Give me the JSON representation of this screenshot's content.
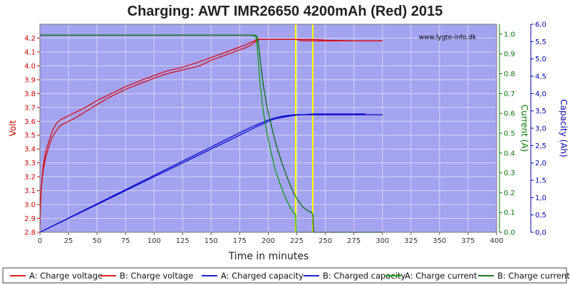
{
  "chart_data": {
    "type": "line",
    "title": "Charging: AWT IMR26650 4200mAh (Red) 2015",
    "watermark": "www.lygte-info.dk",
    "xlabel": "Time in minutes",
    "ylabel_left": "Volt",
    "ylabel_right1": "Current (A)",
    "ylabel_right2": "Capacity (Ah)",
    "xlim": [
      0,
      400
    ],
    "ylim_left": [
      2.8,
      4.3
    ],
    "ylim_right1": [
      0.0,
      1.05
    ],
    "ylim_right2": [
      0.0,
      6.0
    ],
    "grid": true,
    "legend_position": "bottom",
    "x_ticks": [
      "0",
      "25",
      "50",
      "75",
      "100",
      "125",
      "150",
      "175",
      "200",
      "225",
      "250",
      "275",
      "300",
      "325",
      "350",
      "375",
      "400"
    ],
    "y_ticks_left": [
      "2.8",
      "2.9",
      "3.0",
      "3.1",
      "3.2",
      "3.3",
      "3.4",
      "3.5",
      "3.6",
      "3.7",
      "3.8",
      "3.9",
      "4.0",
      "4.1",
      "4.2"
    ],
    "y_ticks_right1": [
      "0.0",
      "0.1",
      "0.2",
      "0.3",
      "0.4",
      "0.5",
      "0.6",
      "0.7",
      "0.8",
      "0.9",
      "1.0"
    ],
    "y_ticks_right2": [
      "0,0",
      "0,5",
      "1,0",
      "1,5",
      "2,0",
      "2,5",
      "3,0",
      "3,5",
      "4,0",
      "4,5",
      "5,0",
      "5,5",
      "6,0"
    ],
    "markers": [
      {
        "x": 224,
        "color": "#ffff00"
      },
      {
        "x": 239,
        "color": "#ffff00"
      }
    ],
    "colors": {
      "plot_bg": "#a3a3f0",
      "grid": "#d4d4f4",
      "left_axis": "#cc0000",
      "right1_axis": "#007700",
      "right2_axis": "#0000aa"
    },
    "series": [
      {
        "name": "A: Charge voltage",
        "axis": "left",
        "color": "#dd0000",
        "x": [
          0,
          0.5,
          1,
          2,
          3,
          5,
          8,
          10,
          12,
          15,
          18,
          20,
          25,
          30,
          40,
          50,
          60,
          75,
          90,
          100,
          110,
          125,
          140,
          150,
          160,
          170,
          180,
          185,
          188,
          190,
          192,
          195,
          200,
          210,
          220,
          225,
          230,
          240,
          250,
          275,
          300
        ],
        "y": [
          2.85,
          3.0,
          3.1,
          3.2,
          3.28,
          3.38,
          3.46,
          3.51,
          3.55,
          3.59,
          3.61,
          3.62,
          3.64,
          3.66,
          3.7,
          3.75,
          3.79,
          3.85,
          3.9,
          3.93,
          3.96,
          3.99,
          4.03,
          4.06,
          4.09,
          4.12,
          4.15,
          4.17,
          4.18,
          4.19,
          4.19,
          4.19,
          4.19,
          4.19,
          4.19,
          4.19,
          4.19,
          4.19,
          4.185,
          4.18,
          4.18
        ]
      },
      {
        "name": "B: Charge voltage",
        "axis": "left",
        "color": "#dd0000",
        "x": [
          0,
          0.5,
          1,
          2,
          3,
          5,
          8,
          10,
          12,
          15,
          18,
          20,
          25,
          30,
          40,
          50,
          60,
          75,
          90,
          100,
          110,
          125,
          140,
          150,
          160,
          170,
          180,
          185,
          188,
          190,
          192,
          195,
          200,
          210,
          220,
          225,
          230,
          235,
          240,
          250,
          275,
          300
        ],
        "y": [
          2.82,
          2.98,
          3.08,
          3.18,
          3.25,
          3.34,
          3.42,
          3.47,
          3.5,
          3.54,
          3.57,
          3.58,
          3.6,
          3.62,
          3.67,
          3.72,
          3.77,
          3.83,
          3.88,
          3.91,
          3.94,
          3.97,
          4.0,
          4.04,
          4.07,
          4.1,
          4.13,
          4.15,
          4.17,
          4.18,
          4.19,
          4.19,
          4.19,
          4.19,
          4.19,
          4.19,
          4.18,
          4.18,
          4.18,
          4.18,
          4.18,
          4.18
        ]
      },
      {
        "name": "A: Charged capacity",
        "axis": "right2",
        "color": "#0000cc",
        "x": [
          0,
          25,
          50,
          75,
          100,
          125,
          150,
          175,
          185,
          190,
          195,
          200,
          205,
          210,
          215,
          220,
          224,
          225,
          240,
          250,
          275,
          300
        ],
        "y": [
          0.0,
          0.41,
          0.82,
          1.23,
          1.64,
          2.05,
          2.46,
          2.87,
          3.03,
          3.1,
          3.17,
          3.24,
          3.29,
          3.33,
          3.36,
          3.38,
          3.39,
          3.39,
          3.39,
          3.39,
          3.39,
          3.39
        ]
      },
      {
        "name": "B: Charged capacity",
        "axis": "right2",
        "color": "#0000cc",
        "x": [
          0,
          25,
          50,
          75,
          100,
          125,
          150,
          175,
          185,
          190,
          195,
          200,
          205,
          210,
          215,
          220,
          225,
          230,
          235,
          239,
          240,
          250,
          275,
          285
        ],
        "y": [
          0.0,
          0.4,
          0.8,
          1.2,
          1.6,
          2.0,
          2.4,
          2.8,
          2.97,
          3.05,
          3.12,
          3.2,
          3.26,
          3.3,
          3.33,
          3.36,
          3.38,
          3.39,
          3.4,
          3.41,
          3.41,
          3.41,
          3.41,
          3.41
        ]
      },
      {
        "name": "A: Charge current",
        "axis": "right1",
        "color": "#00a000",
        "x": [
          0,
          185,
          189,
          190,
          191,
          193,
          195,
          197,
          200,
          203,
          206,
          210,
          214,
          218,
          220,
          222,
          224,
          224.5,
          300
        ],
        "y": [
          0.995,
          0.995,
          0.99,
          0.96,
          0.88,
          0.74,
          0.64,
          0.56,
          0.47,
          0.39,
          0.32,
          0.25,
          0.19,
          0.14,
          0.12,
          0.1,
          0.09,
          0.0,
          0.0
        ]
      },
      {
        "name": "B: Charge current",
        "axis": "right1",
        "color": "#006600",
        "x": [
          0,
          188,
          190,
          191,
          192,
          194,
          196,
          199,
          203,
          207,
          212,
          217,
          222,
          226,
          230,
          234,
          238,
          239,
          239.5,
          300
        ],
        "y": [
          0.995,
          0.995,
          0.99,
          0.97,
          0.92,
          0.82,
          0.73,
          0.63,
          0.53,
          0.44,
          0.35,
          0.27,
          0.2,
          0.16,
          0.13,
          0.11,
          0.1,
          0.09,
          0.0,
          0.0
        ]
      }
    ]
  }
}
